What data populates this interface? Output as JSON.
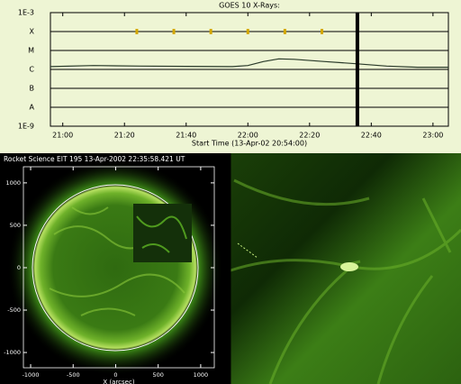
{
  "chart_data": [
    {
      "type": "line",
      "title": "GOES 10 X-Rays:",
      "x_label": "Start Time (13-Apr-02 20:54:00)",
      "log_y": true,
      "ylim": [
        1e-09,
        0.001
      ],
      "yticks": [
        {
          "value": 1e-09,
          "label": "1E-9"
        },
        {
          "value": 1e-08,
          "label": "A"
        },
        {
          "value": 1e-07,
          "label": "B"
        },
        {
          "value": 1e-06,
          "label": "C"
        },
        {
          "value": 1e-05,
          "label": "M"
        },
        {
          "value": 0.0001,
          "label": "X"
        },
        {
          "value": 0.001,
          "label": "1E-3"
        }
      ],
      "xlim": [
        1256,
        1385
      ],
      "xticks": [
        {
          "value": 1260,
          "label": "21:00"
        },
        {
          "value": 1280,
          "label": "21:20"
        },
        {
          "value": 1300,
          "label": "21:40"
        },
        {
          "value": 1320,
          "label": "22:00"
        },
        {
          "value": 1340,
          "label": "22:20"
        },
        {
          "value": 1360,
          "label": "22:40"
        },
        {
          "value": 1380,
          "label": "23:00"
        }
      ],
      "grid": true,
      "series": [
        {
          "color": "#2a3a2a",
          "x": [
            1256,
            1270,
            1285,
            1300,
            1315,
            1320,
            1325,
            1330,
            1335,
            1345,
            1355,
            1365,
            1375,
            1385
          ],
          "values": [
            1.4e-06,
            1.6e-06,
            1.5e-06,
            1.45e-06,
            1.4e-06,
            1.6e-06,
            2.6e-06,
            3.6e-06,
            3.4e-06,
            2.6e-06,
            2e-06,
            1.5e-06,
            1.3e-06,
            1.3e-06
          ]
        }
      ],
      "markers": {
        "color": "#d4a800",
        "x": [
          1284,
          1296,
          1308,
          1320,
          1332,
          1344
        ]
      },
      "cursor": {
        "color": "#000000",
        "x": 1355.5
      }
    },
    {
      "type": "image",
      "title": "Rocket Science EIT 195 13-Apr-2002 22:35:58.421 UT",
      "x_label": "X (arcsec)",
      "xlim": [
        -1085,
        1160
      ],
      "ylim": [
        -1180,
        1190
      ],
      "xticks": [
        -1000,
        -500,
        0,
        500,
        1000
      ],
      "yticks": [
        -1000,
        -500,
        0,
        500,
        1000
      ]
    }
  ]
}
